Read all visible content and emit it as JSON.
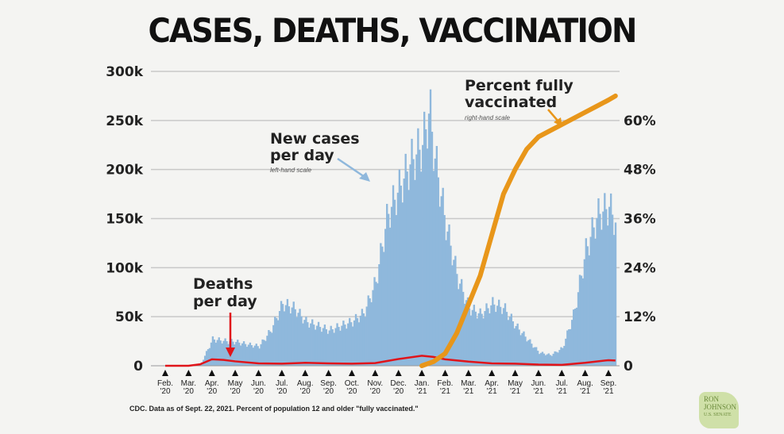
{
  "title": "CASES, DEATHS, VACCINATION",
  "source": "CDC. Data as of Sept. 22, 2021. Percent of population 12 and older \"fully vaccinated.\"",
  "logo": {
    "line1": "RON",
    "line2": "JOHNSON",
    "line3": "U.S. SENATE"
  },
  "colors": {
    "cases": "#8fb8dc",
    "deaths": "#e0141a",
    "vaccinated": "#e8961a",
    "grid": "#c8c8c8"
  },
  "annotations": {
    "cases_label_1": "New cases",
    "cases_label_2": "per day",
    "cases_scale": "left-hand scale",
    "deaths_label_1": "Deaths",
    "deaths_label_2": "per day",
    "vacc_label_1": "Percent fully",
    "vacc_label_2": "vaccinated",
    "vacc_scale": "right-hand scale"
  },
  "chart_data": {
    "type": "bar+line",
    "title": "CASES, DEATHS, VACCINATION",
    "left_axis": {
      "ticks": [
        "0",
        "50k",
        "100k",
        "150k",
        "200k",
        "250k",
        "300k"
      ],
      "range": [
        0,
        300000
      ]
    },
    "right_axis": {
      "ticks": [
        "0",
        "12%",
        "24%",
        "36%",
        "48%",
        "60%"
      ],
      "range": [
        0,
        72
      ]
    },
    "x_ticks": [
      [
        "Feb.",
        "'20"
      ],
      [
        "Mar.",
        "'20"
      ],
      [
        "Apr.",
        "'20"
      ],
      [
        "May",
        "'20"
      ],
      [
        "Jun.",
        "'20"
      ],
      [
        "Jul.",
        "'20"
      ],
      [
        "Aug.",
        "'20"
      ],
      [
        "Sep.",
        "'20"
      ],
      [
        "Oct.",
        "'20"
      ],
      [
        "Nov.",
        "'20"
      ],
      [
        "Dec.",
        "'20"
      ],
      [
        "Jan.",
        "'21"
      ],
      [
        "Feb.",
        "'21"
      ],
      [
        "Mar.",
        "'21"
      ],
      [
        "Apr.",
        "'21"
      ],
      [
        "May",
        "'21"
      ],
      [
        "Jun.",
        "'21"
      ],
      [
        "Jul.",
        "'21"
      ],
      [
        "Aug.",
        "'21"
      ],
      [
        "Sep.",
        "'21"
      ]
    ],
    "series": [
      {
        "name": "New cases per day",
        "axis": "left",
        "type": "bar",
        "x": [
          0,
          1,
          1.5,
          2,
          2.5,
          3,
          3.5,
          4,
          4.5,
          5,
          5.5,
          6,
          6.5,
          7,
          7.5,
          8,
          8.5,
          9,
          9.5,
          10,
          10.5,
          11,
          11.3,
          11.5,
          12,
          12.5,
          13,
          13.5,
          14,
          14.5,
          15,
          15.5,
          16,
          16.5,
          17,
          17.5,
          18,
          18.5,
          19,
          19.3
        ],
        "y": [
          0,
          0,
          2000,
          30000,
          28000,
          27000,
          24000,
          22000,
          40000,
          70000,
          65000,
          50000,
          45000,
          40000,
          45000,
          50000,
          60000,
          95000,
          170000,
          200000,
          230000,
          250000,
          290000,
          240000,
          160000,
          100000,
          65000,
          58000,
          70000,
          65000,
          45000,
          30000,
          15000,
          12000,
          20000,
          60000,
          130000,
          170000,
          180000,
          160000
        ]
      },
      {
        "name": "Deaths per day",
        "axis": "left",
        "type": "line",
        "x": [
          0,
          1,
          1.5,
          2,
          2.5,
          3,
          4,
          5,
          6,
          7,
          8,
          9,
          10,
          11,
          11.5,
          12,
          13,
          14,
          15,
          16,
          17,
          18,
          19,
          19.3
        ],
        "y": [
          0,
          0,
          500,
          2200,
          2000,
          1500,
          800,
          700,
          1000,
          800,
          700,
          900,
          2300,
          3400,
          3000,
          2200,
          1400,
          800,
          700,
          400,
          300,
          1000,
          1900,
          1800
        ]
      },
      {
        "name": "Percent fully vaccinated",
        "axis": "right",
        "type": "line",
        "x": [
          11,
          11.5,
          12,
          12.5,
          13,
          13.5,
          14,
          14.5,
          15,
          15.5,
          16,
          16.5,
          17,
          17.5,
          18,
          18.5,
          19,
          19.3
        ],
        "y": [
          0,
          1,
          3,
          8,
          15,
          22,
          32,
          42,
          48,
          53,
          56,
          57.5,
          59,
          60.5,
          62,
          63.5,
          65,
          66
        ]
      }
    ]
  }
}
